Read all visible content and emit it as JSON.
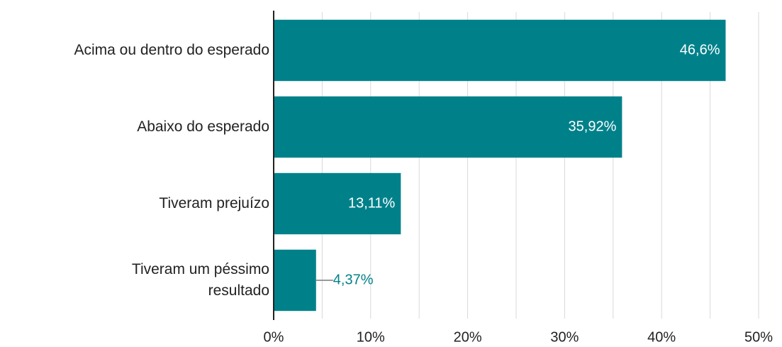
{
  "chart_data": {
    "type": "barh",
    "categories": [
      "Acima ou dentro do esperado",
      "Abaixo do esperado",
      "Tiveram prejuízo",
      "Tiveram um péssimo\nresultado"
    ],
    "values": [
      46.6,
      35.92,
      13.11,
      4.37
    ],
    "value_labels": [
      "46,6%",
      "35,92%",
      "13,11%",
      "4,37%"
    ],
    "color": "#00818a",
    "xlim": [
      0,
      50
    ],
    "xticks": [
      {
        "value": 0,
        "label": "0%"
      },
      {
        "value": 10,
        "label": "10%"
      },
      {
        "value": 20,
        "label": "20%"
      },
      {
        "value": 30,
        "label": "30%"
      },
      {
        "value": 40,
        "label": "40%"
      },
      {
        "value": 50,
        "label": "50%"
      }
    ],
    "xticks_minor": [
      5,
      15,
      25,
      35,
      45
    ],
    "grid": true
  }
}
